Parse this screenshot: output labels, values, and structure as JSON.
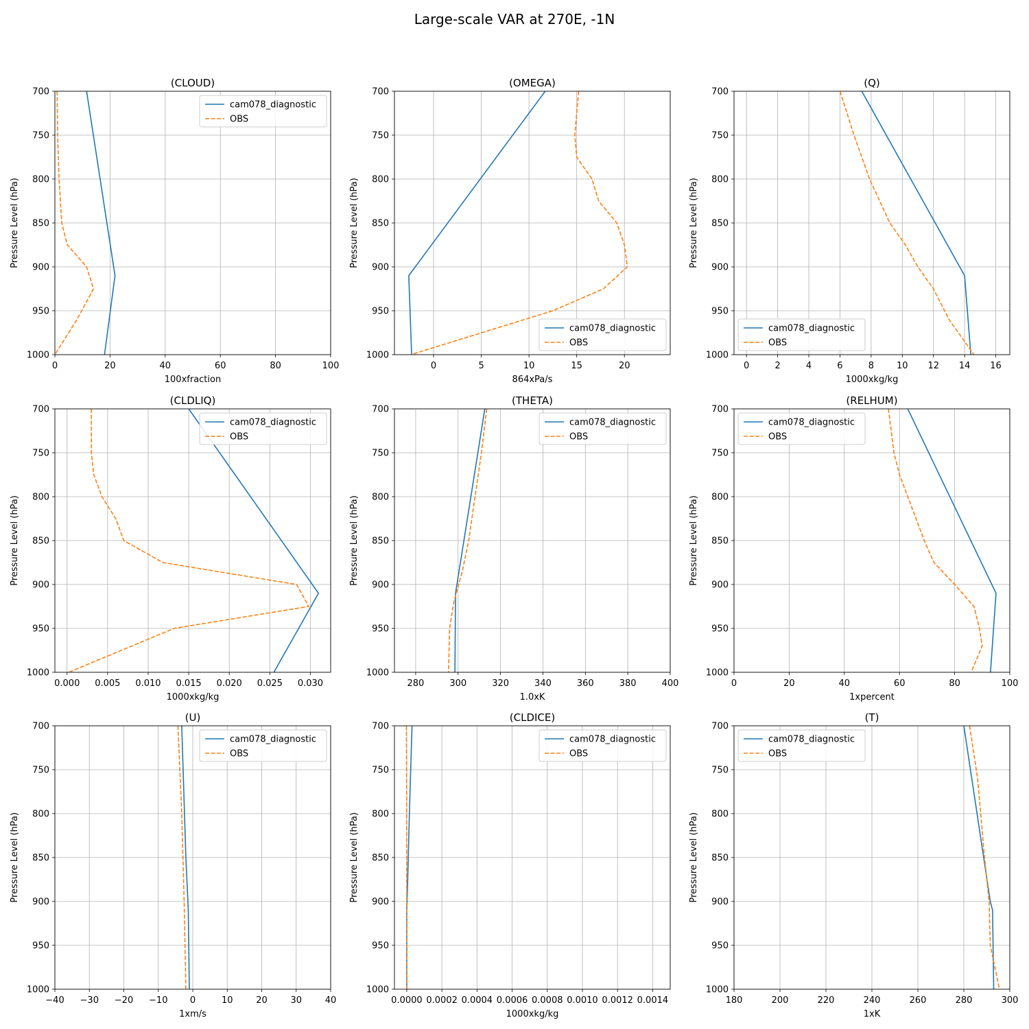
{
  "figure": {
    "title": "Large-scale VAR at 270E, -1N"
  },
  "chart_data": [
    {
      "type": "line",
      "title": "(CLOUD)",
      "xlabel": "100xfraction",
      "ylabel": "Pressure Level (hPa)",
      "xlim": [
        0,
        100
      ],
      "ylim": [
        1000,
        700
      ],
      "xticks": [
        0,
        20,
        40,
        60,
        80,
        100
      ],
      "yticks": [
        700,
        750,
        800,
        850,
        900,
        950,
        1000
      ],
      "grid": true,
      "legend": "upper-right",
      "series": [
        {
          "name": "cam078_diagnostic",
          "color": "#1f77b4",
          "style": "solid",
          "points": [
            [
              11.5,
              700
            ],
            [
              21.8,
              910
            ],
            [
              18,
              1000
            ]
          ]
        },
        {
          "name": "OBS",
          "color": "#ff7f0e",
          "style": "dashed",
          "points": [
            [
              0.8,
              700
            ],
            [
              1,
              750
            ],
            [
              1.5,
              800
            ],
            [
              2.5,
              850
            ],
            [
              4.5,
              875
            ],
            [
              11.5,
              900
            ],
            [
              14,
              925
            ],
            [
              8,
              960
            ],
            [
              0,
              1000
            ]
          ]
        }
      ]
    },
    {
      "type": "line",
      "title": "(OMEGA)",
      "xlabel": "864xPa/s",
      "ylabel": "Pressure Level (hPa)",
      "xlim": [
        -4.1,
        24.8
      ],
      "ylim": [
        1000,
        700
      ],
      "xticks": [
        0,
        5,
        10,
        15,
        20
      ],
      "yticks": [
        700,
        750,
        800,
        850,
        900,
        950,
        1000
      ],
      "grid": true,
      "legend": "lower-right",
      "series": [
        {
          "name": "cam078_diagnostic",
          "color": "#1f77b4",
          "style": "solid",
          "points": [
            [
              11.7,
              700
            ],
            [
              -2.6,
              910
            ],
            [
              -2.3,
              1000
            ]
          ]
        },
        {
          "name": "OBS",
          "color": "#ff7f0e",
          "style": "dashed",
          "points": [
            [
              15.2,
              700
            ],
            [
              14.8,
              750
            ],
            [
              15,
              775
            ],
            [
              16.6,
              800
            ],
            [
              17.3,
              825
            ],
            [
              19.2,
              850
            ],
            [
              20,
              875
            ],
            [
              20.3,
              900
            ],
            [
              17.8,
              925
            ],
            [
              12.5,
              950
            ],
            [
              -2.4,
              1000
            ]
          ]
        }
      ]
    },
    {
      "type": "line",
      "title": "(Q)",
      "xlabel": "1000xkg/kg",
      "ylabel": "Pressure Level (hPa)",
      "xlim": [
        -0.8,
        16.9
      ],
      "ylim": [
        1000,
        700
      ],
      "xticks": [
        0,
        2,
        4,
        6,
        8,
        10,
        12,
        14,
        16
      ],
      "yticks": [
        700,
        750,
        800,
        850,
        900,
        950,
        1000
      ],
      "grid": true,
      "legend": "lower-left",
      "series": [
        {
          "name": "cam078_diagnostic",
          "color": "#1f77b4",
          "style": "solid",
          "points": [
            [
              7.4,
              700
            ],
            [
              14,
              910
            ],
            [
              14.4,
              1000
            ]
          ]
        },
        {
          "name": "OBS",
          "color": "#ff7f0e",
          "style": "dashed",
          "points": [
            [
              6,
              700
            ],
            [
              6.9,
              750
            ],
            [
              7.9,
              800
            ],
            [
              9.2,
              850
            ],
            [
              10.2,
              875
            ],
            [
              11,
              900
            ],
            [
              12,
              925
            ],
            [
              13,
              960
            ],
            [
              14,
              985
            ],
            [
              14.6,
              1000
            ]
          ]
        }
      ]
    },
    {
      "type": "line",
      "title": "(CLDLIQ)",
      "xlabel": "1000xkg/kg",
      "ylabel": "Pressure Level (hPa)",
      "xlim": [
        -0.0015,
        0.0325
      ],
      "ylim": [
        1000,
        700
      ],
      "xticks": [
        0,
        0.005,
        0.01,
        0.015,
        0.02,
        0.025,
        0.03
      ],
      "xticklabels": [
        "0.000",
        "0.005",
        "0.010",
        "0.015",
        "0.020",
        "0.025",
        "0.030"
      ],
      "yticks": [
        700,
        750,
        800,
        850,
        900,
        950,
        1000
      ],
      "grid": true,
      "legend": "upper-right",
      "series": [
        {
          "name": "cam078_diagnostic",
          "color": "#1f77b4",
          "style": "solid",
          "points": [
            [
              0.015,
              700
            ],
            [
              0.031,
              910
            ],
            [
              0.0255,
              1000
            ]
          ]
        },
        {
          "name": "OBS",
          "color": "#ff7f0e",
          "style": "dashed",
          "points": [
            [
              0.003,
              700
            ],
            [
              0.003,
              750
            ],
            [
              0.0033,
              775
            ],
            [
              0.0043,
              800
            ],
            [
              0.006,
              825
            ],
            [
              0.007,
              850
            ],
            [
              0.0118,
              875
            ],
            [
              0.0283,
              900
            ],
            [
              0.0298,
              925
            ],
            [
              0.0132,
              950
            ],
            [
              0.0002,
              1000
            ]
          ]
        }
      ]
    },
    {
      "type": "line",
      "title": "(THETA)",
      "xlabel": "1.0xK",
      "ylabel": "Pressure Level (hPa)",
      "xlim": [
        270,
        400
      ],
      "ylim": [
        1000,
        700
      ],
      "xticks": [
        280,
        300,
        320,
        340,
        360,
        380,
        400
      ],
      "yticks": [
        700,
        750,
        800,
        850,
        900,
        950,
        1000
      ],
      "grid": true,
      "legend": "upper-right",
      "series": [
        {
          "name": "cam078_diagnostic",
          "color": "#1f77b4",
          "style": "solid",
          "points": [
            [
              312.6,
              700
            ],
            [
              298.8,
              910
            ],
            [
              298.5,
              1000
            ]
          ]
        },
        {
          "name": "OBS",
          "color": "#ff7f0e",
          "style": "dashed",
          "points": [
            [
              313.5,
              700
            ],
            [
              311,
              750
            ],
            [
              308,
              800
            ],
            [
              305,
              850
            ],
            [
              302,
              885
            ],
            [
              298,
              920
            ],
            [
              296,
              950
            ],
            [
              295.5,
              1000
            ]
          ]
        }
      ]
    },
    {
      "type": "line",
      "title": "(RELHUM)",
      "xlabel": "1xpercent",
      "ylabel": "Pressure Level (hPa)",
      "xlim": [
        0,
        100
      ],
      "ylim": [
        1000,
        700
      ],
      "xticks": [
        0,
        20,
        40,
        60,
        80,
        100
      ],
      "yticks": [
        700,
        750,
        800,
        850,
        900,
        950,
        1000
      ],
      "grid": true,
      "legend": "upper-left",
      "series": [
        {
          "name": "cam078_diagnostic",
          "color": "#1f77b4",
          "style": "solid",
          "points": [
            [
              63,
              700
            ],
            [
              95,
              910
            ],
            [
              93,
              1000
            ]
          ]
        },
        {
          "name": "OBS",
          "color": "#ff7f0e",
          "style": "dashed",
          "points": [
            [
              56,
              700
            ],
            [
              58,
              750
            ],
            [
              60,
              775
            ],
            [
              63,
              800
            ],
            [
              66,
              825
            ],
            [
              69,
              850
            ],
            [
              72.5,
              875
            ],
            [
              80,
              900
            ],
            [
              87,
              925
            ],
            [
              89,
              950
            ],
            [
              90,
              970
            ],
            [
              86,
              1000
            ]
          ]
        }
      ]
    },
    {
      "type": "line",
      "title": "(U)",
      "xlabel": "1xm/s",
      "ylabel": "Pressure Level (hPa)",
      "xlim": [
        -40,
        40
      ],
      "ylim": [
        1000,
        700
      ],
      "xticks": [
        -40,
        -30,
        -20,
        -10,
        0,
        10,
        20,
        30,
        40
      ],
      "xticklabels": [
        "−40",
        "−30",
        "−20",
        "−10",
        "0",
        "10",
        "20",
        "30",
        "40"
      ],
      "yticks": [
        700,
        750,
        800,
        850,
        900,
        950,
        1000
      ],
      "grid": true,
      "legend": "upper-right",
      "series": [
        {
          "name": "cam078_diagnostic",
          "color": "#1f77b4",
          "style": "solid",
          "points": [
            [
              -3.2,
              700
            ],
            [
              -2,
              850
            ],
            [
              -1.3,
              910
            ],
            [
              -1,
              1000
            ]
          ]
        },
        {
          "name": "OBS",
          "color": "#ff7f0e",
          "style": "dashed",
          "points": [
            [
              -4.3,
              700
            ],
            [
              -3.2,
              800
            ],
            [
              -2.5,
              900
            ],
            [
              -2,
              1000
            ]
          ]
        }
      ]
    },
    {
      "type": "line",
      "title": "(CLDICE)",
      "xlabel": "1000xkg/kg",
      "ylabel": "Pressure Level (hPa)",
      "xlim": [
        -7e-05,
        0.0015
      ],
      "ylim": [
        1000,
        700
      ],
      "xticks": [
        0,
        0.0002,
        0.0004,
        0.0006,
        0.0008,
        0.001,
        0.0012,
        0.0014
      ],
      "xticklabels": [
        "0.0000",
        "0.0002",
        "0.0004",
        "0.0006",
        "0.0008",
        "0.0010",
        "0.0012",
        "0.0014"
      ],
      "yticks": [
        700,
        750,
        800,
        850,
        900,
        950,
        1000
      ],
      "grid": true,
      "legend": "upper-right",
      "series": [
        {
          "name": "cam078_diagnostic",
          "color": "#1f77b4",
          "style": "solid",
          "points": [
            [
              3e-05,
              700
            ],
            [
              1.5e-05,
              800
            ],
            [
              5e-06,
              880
            ],
            [
              0,
              910
            ],
            [
              0,
              1000
            ]
          ]
        },
        {
          "name": "OBS",
          "color": "#ff7f0e",
          "style": "dashed",
          "points": [
            [
              -2e-06,
              700
            ],
            [
              0,
              800
            ],
            [
              0,
              1000
            ]
          ]
        }
      ]
    },
    {
      "type": "line",
      "title": "(T)",
      "xlabel": "1xK",
      "ylabel": "Pressure Level (hPa)",
      "xlim": [
        180,
        300
      ],
      "ylim": [
        1000,
        700
      ],
      "xticks": [
        180,
        200,
        220,
        240,
        260,
        280,
        300
      ],
      "yticks": [
        700,
        750,
        800,
        850,
        900,
        950,
        1000
      ],
      "grid": true,
      "legend": "upper-left",
      "series": [
        {
          "name": "cam078_diagnostic",
          "color": "#1f77b4",
          "style": "solid",
          "points": [
            [
              280,
              700
            ],
            [
              291.5,
              900
            ],
            [
              292.5,
              910
            ],
            [
              293,
              1000
            ]
          ]
        },
        {
          "name": "OBS",
          "color": "#ff7f0e",
          "style": "dashed",
          "points": [
            [
              282.5,
              700
            ],
            [
              286,
              760
            ],
            [
              289,
              850
            ],
            [
              291,
              900
            ],
            [
              291.5,
              950
            ],
            [
              295.5,
              1000
            ]
          ]
        }
      ]
    }
  ]
}
